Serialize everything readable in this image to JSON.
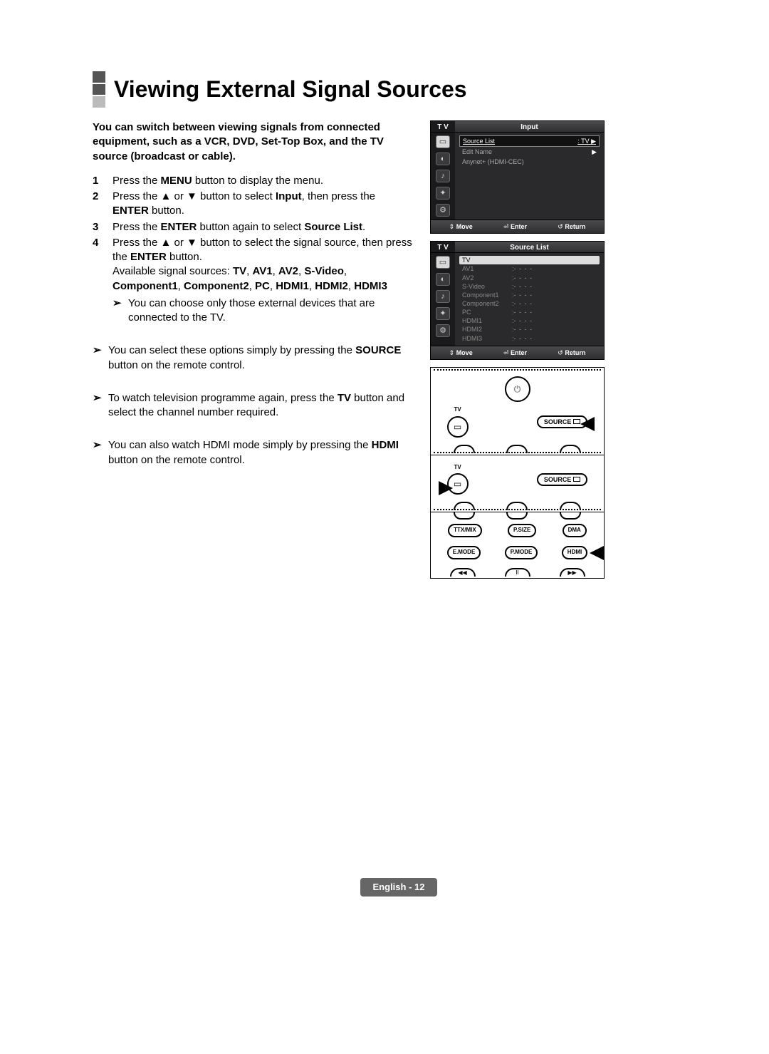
{
  "title": "Viewing External Signal Sources",
  "intro": "You can switch between viewing signals from connected equipment, such as a VCR, DVD, Set-Top Box, and the TV source (broadcast or cable).",
  "steps": {
    "s1": {
      "n": "1",
      "a": "Press the ",
      "b": "MENU",
      "c": " button to display the menu."
    },
    "s2": {
      "n": "2",
      "a": "Press the ▲ or ▼ button to select ",
      "b": "Input",
      "c": ", then press the ",
      "d": "ENTER",
      "e": " button."
    },
    "s3": {
      "n": "3",
      "a": "Press the ",
      "b": "ENTER",
      "c": " button again to select ",
      "d": "Source List",
      "e": "."
    },
    "s4": {
      "n": "4",
      "a": "Press the ▲ or ▼ button to select the signal source, then press the ",
      "b": "ENTER",
      "c": " button."
    },
    "s4b": {
      "a": "Available signal sources: ",
      "b": "TV",
      "c": ", ",
      "d": "AV1",
      "e": ", ",
      "f": "AV2",
      "g": ", ",
      "h": "S-Video",
      "i": ", ",
      "j": "Component1",
      "k": ", ",
      "l": "Component2",
      "m": ", ",
      "n": "PC",
      "o": ", ",
      "p": "HDMI1",
      "q": ", ",
      "r": "HDMI2",
      "s": ", ",
      "t": "HDMI3"
    }
  },
  "note1": "You can choose only those external devices that are connected to the TV.",
  "note2a": "You can select these options simply by pressing the ",
  "note2b": "SOURCE",
  "note2c": " button on the remote control.",
  "note3a": "To watch television programme again, press the ",
  "note3b": "TV",
  "note3c": " button and select the channel number required.",
  "note4a": "You can also watch HDMI mode simply by pressing the ",
  "note4b": "HDMI",
  "note4c": " button on the remote control.",
  "osd1": {
    "corner": "T V",
    "header": "Input",
    "rows": [
      {
        "l": "Source List",
        "r": ": TV",
        "sel": true
      },
      {
        "l": "Edit Name",
        "r": "",
        "sel": false
      },
      {
        "l": "Anynet+ (HDMI-CEC)",
        "r": "",
        "sel": false
      }
    ],
    "foot": {
      "a": "Move",
      "b": "Enter",
      "c": "Return"
    }
  },
  "osd2": {
    "corner": "T V",
    "header": "Source List",
    "items": [
      "TV",
      "AV1",
      "AV2",
      "S-Video",
      "Component1",
      "Component2",
      "PC",
      "HDMI1",
      "HDMI2",
      "HDMI3"
    ],
    "foot": {
      "a": "Move",
      "b": "Enter",
      "c": "Return"
    }
  },
  "remote": {
    "tv": "TV",
    "source": "SOURCE",
    "ttx": "TTX/MIX",
    "psize": "P.SIZE",
    "dma": "DMA",
    "emode": "E.MODE",
    "pmode": "P.MODE",
    "hdmi": "HDMI",
    "rew": "◀◀",
    "pause": "II",
    "ff": "▶▶"
  },
  "footer": "English - 12",
  "arrow_glyph": "➢",
  "updown": "⇕",
  "enter_g": "⏎",
  "return_g": "↺",
  "chev": "▶",
  "power": "⏻",
  "src": "⎚"
}
